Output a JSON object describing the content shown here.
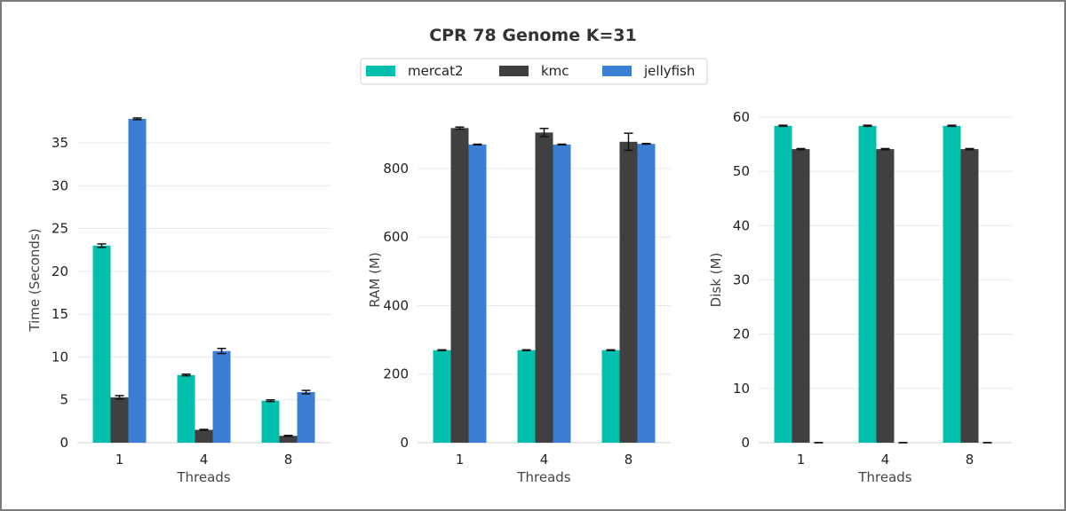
{
  "chart_data": {
    "title": "CPR 78 Genome K=31",
    "legend": {
      "placement": "top-center",
      "entries": [
        {
          "name": "mercat2",
          "color": "#00bfad"
        },
        {
          "name": "kmc",
          "color": "#404040"
        },
        {
          "name": "jellyfish",
          "color": "#3a7fd5"
        }
      ]
    },
    "panels": [
      {
        "type": "bar",
        "xlabel": "Threads",
        "ylabel": "Time (Seconds)",
        "categories": [
          "1",
          "4",
          "8"
        ],
        "ylim": [
          0,
          38
        ],
        "yticks": [
          0,
          5,
          10,
          15,
          20,
          25,
          30,
          35
        ],
        "grid": true,
        "series": [
          {
            "name": "mercat2",
            "values": [
              23.0,
              7.9,
              4.9
            ],
            "errors": [
              0.2,
              0.1,
              0.1
            ]
          },
          {
            "name": "kmc",
            "values": [
              5.3,
              1.5,
              0.8
            ],
            "errors": [
              0.2,
              0.05,
              0.05
            ]
          },
          {
            "name": "jellyfish",
            "values": [
              37.8,
              10.7,
              5.9
            ],
            "errors": [
              0.1,
              0.3,
              0.2
            ]
          }
        ]
      },
      {
        "type": "bar",
        "xlabel": "Threads",
        "ylabel": "RAM (M)",
        "categories": [
          "1",
          "4",
          "8"
        ],
        "ylim": [
          0,
          950
        ],
        "yticks": [
          0,
          200,
          400,
          600,
          800
        ],
        "grid": true,
        "series": [
          {
            "name": "mercat2",
            "values": [
              270,
              270,
              270
            ],
            "errors": [
              1,
              1,
              1
            ]
          },
          {
            "name": "kmc",
            "values": [
              918,
              905,
              878
            ],
            "errors": [
              3,
              12,
              25
            ]
          },
          {
            "name": "jellyfish",
            "values": [
              870,
              870,
              872
            ],
            "errors": [
              1,
              1,
              1
            ]
          }
        ]
      },
      {
        "type": "bar",
        "xlabel": "Threads",
        "ylabel": "Disk (M)",
        "categories": [
          "1",
          "4",
          "8"
        ],
        "ylim": [
          0,
          60
        ],
        "yticks": [
          0,
          10,
          20,
          30,
          40,
          50,
          60
        ],
        "grid": true,
        "series": [
          {
            "name": "mercat2",
            "values": [
              58.4,
              58.4,
              58.4
            ],
            "errors": [
              0.1,
              0.1,
              0.1
            ]
          },
          {
            "name": "kmc",
            "values": [
              54.1,
              54.1,
              54.1
            ],
            "errors": [
              0.1,
              0.1,
              0.1
            ]
          },
          {
            "name": "jellyfish",
            "values": [
              0,
              0,
              0
            ],
            "errors": [
              0,
              0,
              0
            ]
          }
        ]
      }
    ]
  }
}
